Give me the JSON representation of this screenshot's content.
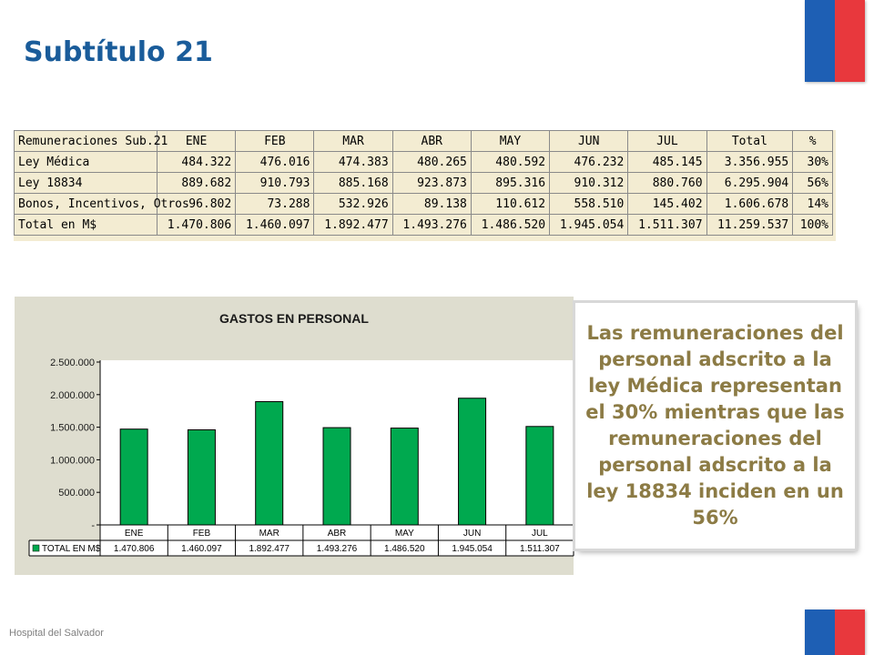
{
  "slide": {
    "title": "Subtítulo 21",
    "footer": "Hospital del Salvador",
    "callout": "Las remuneraciones del personal adscrito a la ley Médica representan el 30% mientras que las remuneraciones del personal adscrito a la ley 18834 inciden en un 56%"
  },
  "colors": {
    "title": "#1a5c9a",
    "bar": "#00a94f",
    "callout_text": "#8c7b45",
    "flag_blue": "#1e5fb4",
    "flag_red": "#e8383d"
  },
  "table": {
    "headers": [
      "Remuneraciones Sub.21",
      "ENE",
      "FEB",
      "MAR",
      "ABR",
      "MAY",
      "JUN",
      "JUL",
      "Total",
      "%"
    ],
    "rows": [
      [
        "Ley Médica",
        "484.322",
        "476.016",
        "474.383",
        "480.265",
        "480.592",
        "476.232",
        "485.145",
        "3.356.955",
        "30%"
      ],
      [
        "Ley 18834",
        "889.682",
        "910.793",
        "885.168",
        "923.873",
        "895.316",
        "910.312",
        "880.760",
        "6.295.904",
        "56%"
      ],
      [
        "Bonos, Incentivos, Otros",
        "96.802",
        "73.288",
        "532.926",
        "89.138",
        "110.612",
        "558.510",
        "145.402",
        "1.606.678",
        "14%"
      ],
      [
        "Total en M$",
        "1.470.806",
        "1.460.097",
        "1.892.477",
        "1.493.276",
        "1.486.520",
        "1.945.054",
        "1.511.307",
        "11.259.537",
        "100%"
      ]
    ]
  },
  "chart_data": {
    "type": "bar",
    "title": "GASTOS EN PERSONAL",
    "categories": [
      "ENE",
      "FEB",
      "MAR",
      "ABR",
      "MAY",
      "JUN",
      "JUL"
    ],
    "series": [
      {
        "name": "TOTAL EN M$",
        "values": [
          1470806,
          1460097,
          1892477,
          1493276,
          1486520,
          1945054,
          1511307
        ]
      }
    ],
    "value_labels": [
      "1.470.806",
      "1.460.097",
      "1.892.477",
      "1.493.276",
      "1.486.520",
      "1.945.054",
      "1.511.307"
    ],
    "yticks": [
      0,
      500000,
      1000000,
      1500000,
      2000000,
      2500000
    ],
    "ytick_labels": [
      "-",
      "500.000",
      "1.000.000",
      "1.500.000",
      "2.000.000",
      "2.500.000"
    ],
    "ylim": [
      0,
      2500000
    ],
    "grid": false,
    "legend": "data-table"
  }
}
